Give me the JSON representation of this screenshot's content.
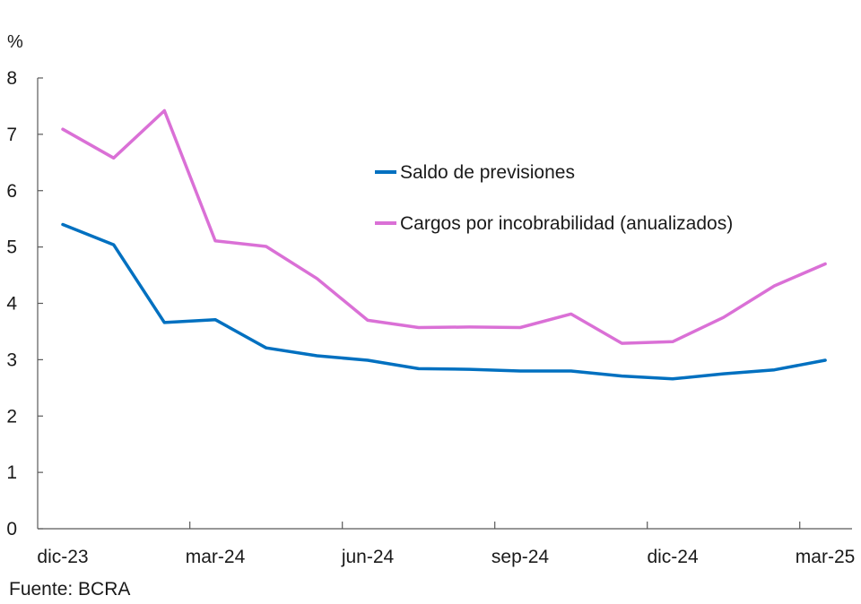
{
  "chart_data": {
    "type": "line",
    "title": "",
    "ylabel": "%",
    "xlabel": "",
    "ylim": [
      0,
      8
    ],
    "yticks": [
      0,
      1,
      2,
      3,
      4,
      5,
      6,
      7,
      8
    ],
    "x": [
      "dic-23",
      "ene-24",
      "feb-24",
      "mar-24",
      "abr-24",
      "may-24",
      "jun-24",
      "jul-24",
      "ago-24",
      "sep-24",
      "oct-24",
      "nov-24",
      "dic-24",
      "ene-25",
      "feb-25",
      "mar-25"
    ],
    "xtick_labels": [
      "dic-23",
      "mar-24",
      "jun-24",
      "sep-24",
      "dic-24",
      "mar-25"
    ],
    "grid": false,
    "legend_position": "top-right",
    "series": [
      {
        "name": "Saldo de previsiones",
        "color": "#0070c0",
        "values": [
          5.4,
          5.04,
          3.66,
          3.71,
          3.21,
          3.07,
          2.99,
          2.84,
          2.83,
          2.8,
          2.8,
          2.71,
          2.66,
          2.75,
          2.82,
          2.99
        ]
      },
      {
        "name": "Cargos por incobrabilidad (anualizados)",
        "color": "#da70d6",
        "values": [
          7.09,
          6.58,
          7.42,
          5.11,
          5.01,
          4.44,
          3.7,
          3.57,
          3.58,
          3.57,
          3.81,
          3.29,
          3.32,
          3.75,
          4.31,
          4.7
        ]
      }
    ]
  },
  "source": "Fuente: BCRA"
}
